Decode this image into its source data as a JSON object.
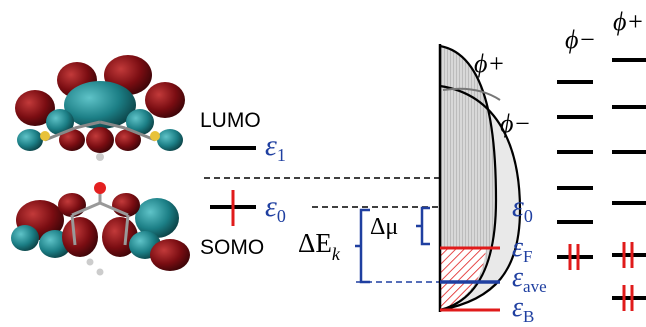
{
  "labels": {
    "lumo": "LUMO",
    "somo": "SOMO",
    "eps1": "ε",
    "eps1_sub": "1",
    "eps0_left": "ε",
    "eps0_left_sub": "0",
    "delta_e": "ΔE",
    "delta_e_sub": "k",
    "delta_mu": "Δμ",
    "eps0_right": "ε",
    "eps0_right_sub": "0",
    "eps_f": "ε",
    "eps_f_sub": "F",
    "eps_ave": "ε",
    "eps_ave_sub": "ave",
    "eps_b": "ε",
    "eps_b_sub": "B",
    "phi_plus_curve": "ϕ+",
    "phi_minus_curve": "ϕ−",
    "phi_minus_col": "ϕ−",
    "phi_plus_col": "ϕ+"
  },
  "colors": {
    "blue": "#1f3fa0",
    "red": "#e01b1b",
    "lobe_dark_red": "#7a0d12",
    "lobe_teal": "#1c7f86",
    "dos_fill": "#cfcfcf"
  }
}
